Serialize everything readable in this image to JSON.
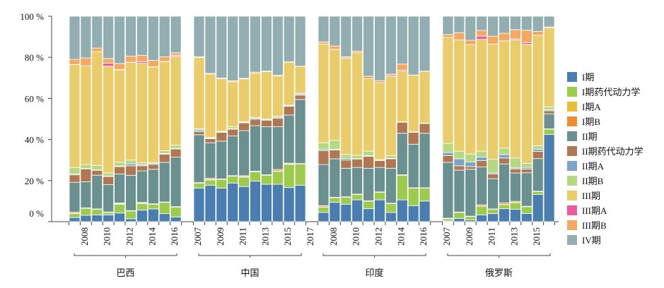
{
  "chart_data": {
    "type": "bar",
    "stacked": true,
    "normalized": true,
    "ylim": [
      0,
      100
    ],
    "y_ticks": [
      "0 %",
      "20 %",
      "40 %",
      "60 %",
      "80 %",
      "100 %"
    ],
    "legend_position": "right",
    "series": [
      {
        "name": "I期",
        "color": "#4a7eb0"
      },
      {
        "name": "I期药代动力学",
        "color": "#9dcb4c"
      },
      {
        "name": "I期A",
        "color": "#e9bc39"
      },
      {
        "name": "I期B",
        "color": "#f38b33"
      },
      {
        "name": "II期",
        "color": "#6a9090"
      },
      {
        "name": "II期药代动力学",
        "color": "#b07852"
      },
      {
        "name": "II期A",
        "color": "#7ca4c8"
      },
      {
        "name": "II期B",
        "color": "#b5d880"
      },
      {
        "name": "III期",
        "color": "#eacd6a"
      },
      {
        "name": "III期A",
        "color": "#ee5a9a"
      },
      {
        "name": "III期B",
        "color": "#f4a862"
      },
      {
        "name": "IV期",
        "color": "#93aeb0"
      }
    ],
    "groups": [
      {
        "name": "巴西",
        "years": [
          2007,
          2008,
          2009,
          2010,
          2011,
          2012,
          2013,
          2014,
          2015,
          2016
        ],
        "tick_labels": [
          "2008",
          "2010",
          "2012",
          "2014",
          "2016"
        ],
        "values": [
          [
            2.0,
            1.9,
            0.2,
            0.5,
            14.6,
            3.6,
            0.4,
            3.2,
            50.1,
            0.1,
            2.5,
            21.0
          ],
          [
            3.1,
            3.4,
            0.1,
            0.1,
            12.7,
            6.3,
            0.2,
            1.9,
            48.1,
            0,
            3.8,
            20.3
          ],
          [
            3.3,
            2.7,
            0.1,
            0.1,
            16.4,
            2.4,
            0.2,
            2.2,
            55.4,
            0,
            1.7,
            15.5
          ],
          [
            3.3,
            1.2,
            0.1,
            0.1,
            13.3,
            4.0,
            0.2,
            1.5,
            52.0,
            1.4,
            2.3,
            20.6
          ],
          [
            4.2,
            4.3,
            0.3,
            0.3,
            14.1,
            3.6,
            0.3,
            1.8,
            45.0,
            0.2,
            2.9,
            23.0
          ],
          [
            1.4,
            3.8,
            0.1,
            0.1,
            17.2,
            4.6,
            1.0,
            1.8,
            47.6,
            0.1,
            2.9,
            19.5
          ],
          [
            5.6,
            3.2,
            0.2,
            0.4,
            15.3,
            2.5,
            0.5,
            1.0,
            48.4,
            0.8,
            3.1,
            19.0
          ],
          [
            6.2,
            2.3,
            0.1,
            0.1,
            16.8,
            2.3,
            0.5,
            0.5,
            46.5,
            0.1,
            3.1,
            21.5
          ],
          [
            3.9,
            5.5,
            0.1,
            0.1,
            19.3,
            4.0,
            0.3,
            1.4,
            43.4,
            0.1,
            2.2,
            19.8
          ],
          [
            2.3,
            4.8,
            0.1,
            0.1,
            24.1,
            4.0,
            0.3,
            1.5,
            43.3,
            0.5,
            1.2,
            17.8
          ]
        ]
      },
      {
        "name": "中国",
        "years": [
          2007,
          2008,
          2009,
          2010,
          2011,
          2012,
          2013,
          2014,
          2015,
          2016
        ],
        "tick_labels": [
          "2007",
          "2009",
          "2011",
          "2013",
          "2015",
          "2017"
        ],
        "values": [
          [
            16.3,
            2.5,
            0.1,
            0.1,
            23.3,
            1.5,
            0.8,
            0.6,
            34.7,
            0,
            0.4,
            19.7
          ],
          [
            17.7,
            2.6,
            0.3,
            0.5,
            17.3,
            2.0,
            0.2,
            0.4,
            30.8,
            0,
            0.4,
            27.8
          ],
          [
            16.3,
            4.3,
            0.1,
            0.1,
            18.4,
            4.3,
            0.2,
            0.3,
            25.6,
            0,
            0.3,
            30.1
          ],
          [
            18.8,
            3.4,
            0.1,
            0.1,
            19.3,
            3.3,
            0.3,
            1.0,
            21.8,
            0,
            0.5,
            31.4
          ],
          [
            17.1,
            4.6,
            0.2,
            0.5,
            21.9,
            3.8,
            0.2,
            0.4,
            20.8,
            0,
            0.3,
            30.2
          ],
          [
            19.7,
            4.6,
            0.1,
            0.2,
            22.1,
            3.1,
            0.5,
            0.4,
            21.5,
            0,
            0.6,
            27.2
          ],
          [
            18.2,
            4.4,
            0.1,
            0.1,
            23.4,
            3.2,
            0.2,
            0.3,
            23.1,
            0,
            0.3,
            26.7
          ],
          [
            18.2,
            6.3,
            0.2,
            0.7,
            20.8,
            4.1,
            0.5,
            0.5,
            19.6,
            0,
            0.4,
            28.7
          ],
          [
            16.6,
            11.3,
            0.2,
            0.4,
            23.4,
            4.3,
            0.2,
            0.3,
            20.9,
            0,
            0.2,
            22.2
          ],
          [
            17.7,
            10.4,
            0.1,
            0.1,
            31.2,
            2.0,
            0.6,
            0.4,
            13.1,
            0,
            0.1,
            24.3
          ]
        ]
      },
      {
        "name": "印度",
        "years": [
          2007,
          2008,
          2009,
          2010,
          2011,
          2012,
          2013,
          2014,
          2015,
          2016
        ],
        "tick_labels": [
          "2008",
          "2010",
          "2012",
          "2014",
          "2016"
        ],
        "values": [
          [
            4.5,
            2.6,
            0.1,
            0.6,
            20.0,
            6.8,
            0.6,
            3.2,
            48.1,
            0,
            1.0,
            12.5
          ],
          [
            9.4,
            2.3,
            0.1,
            0.1,
            18.7,
            4.3,
            0.4,
            4.3,
            44.3,
            0,
            1.6,
            14.5
          ],
          [
            8.5,
            3.4,
            0.1,
            0.1,
            13.9,
            4.0,
            0.8,
            1.9,
            46.9,
            0.5,
            0.2,
            19.7
          ],
          [
            10.6,
            2.6,
            0.1,
            0.1,
            13.0,
            4.1,
            0.2,
            1.6,
            49.9,
            0,
            0.8,
            17.0
          ],
          [
            6.3,
            3.7,
            0.1,
            0.1,
            15.8,
            5.8,
            0.4,
            2.1,
            35.3,
            0,
            1.2,
            29.2
          ],
          [
            10.6,
            3.7,
            0.1,
            0.1,
            11.9,
            3.3,
            0.1,
            0.5,
            37.3,
            0,
            1.0,
            31.4
          ],
          [
            4.5,
            4.3,
            0.1,
            0.1,
            17.0,
            4.6,
            0.2,
            1.4,
            38.4,
            0.5,
            0.7,
            28.2
          ],
          [
            10.6,
            12.0,
            0.1,
            0.1,
            20.2,
            5.4,
            0.1,
            0.1,
            24.6,
            0.5,
            3.0,
            23.3
          ],
          [
            7.7,
            8.6,
            0.1,
            0.1,
            21.2,
            5.8,
            0.1,
            0.1,
            27.6,
            0,
            0.1,
            28.6
          ],
          [
            10.0,
            6.3,
            0.1,
            0.1,
            26.5,
            4.8,
            0.1,
            0.1,
            25.2,
            0,
            0.1,
            26.7
          ]
        ]
      },
      {
        "name": "俄罗斯",
        "years": [
          2007,
          2008,
          2009,
          2010,
          2011,
          2012,
          2013,
          2014,
          2015,
          2016
        ],
        "tick_labels": [
          "2007",
          "2009",
          "2011",
          "2013",
          "2015"
        ],
        "values": [
          [
            0.3,
            1.1,
            0.1,
            0.2,
            27.2,
            3.2,
            1.6,
            4.4,
            51.6,
            0,
            1.4,
            8.9
          ],
          [
            1.6,
            2.9,
            0.1,
            0.1,
            20.4,
            2.1,
            3.4,
            3.7,
            54.2,
            0,
            3.5,
            8.0
          ],
          [
            0.8,
            1.7,
            0.1,
            0.1,
            22.8,
            1.3,
            2.3,
            3.8,
            53.3,
            0,
            2.1,
            11.7
          ],
          [
            3.3,
            4.2,
            0.1,
            0.6,
            18.4,
            3.1,
            1.7,
            2.9,
            54.5,
            1.5,
            2.8,
            6.9
          ],
          [
            3.9,
            2.1,
            0.1,
            0.1,
            14.7,
            2.3,
            0.6,
            6.6,
            56.1,
            0,
            3.8,
            9.7
          ],
          [
            6.3,
            2.0,
            0.1,
            0.7,
            19.0,
            2.9,
            1.7,
            3.1,
            52.2,
            0,
            3.7,
            8.3
          ],
          [
            6.0,
            3.2,
            0.1,
            0.6,
            13.8,
            2.0,
            0.5,
            4.8,
            57.5,
            0.5,
            4.5,
            6.5
          ],
          [
            4.0,
            3.3,
            0.1,
            0.1,
            16.3,
            1.8,
            0.8,
            2.0,
            57.9,
            0.8,
            6.1,
            6.8
          ],
          [
            13.2,
            1.4,
            0.1,
            0.1,
            15.9,
            3.5,
            1.0,
            1.8,
            53.7,
            0,
            1.9,
            7.4
          ],
          [
            42.4,
            2.6,
            0.1,
            0.1,
            7.3,
            1.5,
            0.5,
            1.4,
            38.5,
            0,
            0.4,
            5.2
          ]
        ]
      }
    ]
  }
}
